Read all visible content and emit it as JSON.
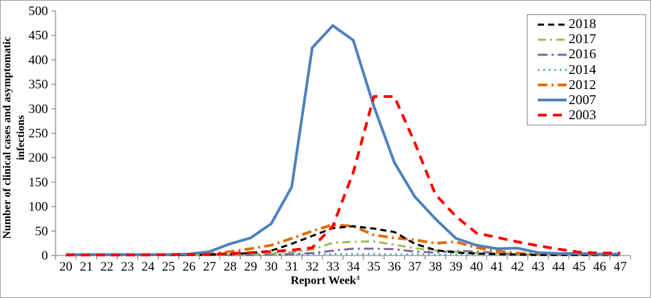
{
  "figure": {
    "y_axis_label_line1": "Number of clinical cases and asymptomatic",
    "y_axis_label_line2": "infections",
    "x_axis_label": "Report Week",
    "x_axis_label_superscript": "±"
  },
  "colors": {
    "axis": "#8c8c8c",
    "legend_border": "#848484",
    "figure_border": "#9a9a9a"
  },
  "chart_data": {
    "type": "line",
    "title": "",
    "xlabel": "Report Week±",
    "ylabel": "Number of clinical cases and asymptomatic infections",
    "x": [
      20,
      21,
      22,
      23,
      24,
      25,
      26,
      27,
      28,
      29,
      30,
      31,
      32,
      33,
      34,
      35,
      36,
      37,
      38,
      39,
      40,
      41,
      42,
      43,
      44,
      45,
      46,
      47
    ],
    "y_ticks": [
      0,
      50,
      100,
      150,
      200,
      250,
      300,
      350,
      400,
      450,
      500
    ],
    "ylim": [
      0,
      500
    ],
    "grid": false,
    "legend_position": "top-right",
    "series": [
      {
        "name": "2018",
        "color": "#000000",
        "dash": "dashed",
        "width": 3,
        "values": [
          1,
          1,
          1,
          1,
          1,
          1,
          1,
          2,
          3,
          5,
          10,
          24,
          40,
          56,
          60,
          55,
          48,
          24,
          11,
          6,
          4,
          3,
          2,
          1,
          1,
          1,
          1,
          1
        ]
      },
      {
        "name": "2017",
        "color": "#9BBB59",
        "dash": "dash-dot",
        "width": 3,
        "values": [
          1,
          1,
          1,
          1,
          1,
          1,
          1,
          1,
          2,
          3,
          4,
          7,
          12,
          26,
          28,
          29,
          22,
          15,
          10,
          8,
          5,
          4,
          2,
          2,
          1,
          1,
          1,
          1
        ]
      },
      {
        "name": "2016",
        "color": "#8064A2",
        "dash": "long-dash-dot",
        "width": 3,
        "values": [
          1,
          1,
          1,
          1,
          1,
          1,
          1,
          1,
          1,
          1,
          2,
          3,
          5,
          10,
          14,
          14,
          13,
          8,
          6,
          10,
          8,
          5,
          3,
          2,
          2,
          1,
          1,
          1
        ]
      },
      {
        "name": "2014",
        "color": "#4BACC6",
        "dash": "dotted",
        "width": 3,
        "values": [
          1,
          1,
          1,
          1,
          1,
          1,
          1,
          1,
          1,
          1,
          2,
          2,
          2,
          3,
          3,
          3,
          2,
          2,
          2,
          2,
          2,
          2,
          2,
          2,
          2,
          2,
          1,
          1
        ]
      },
      {
        "name": "2012",
        "color": "#E36C09",
        "dash": "long-dash-dot",
        "width": 4,
        "values": [
          2,
          2,
          2,
          2,
          2,
          2,
          2,
          3,
          8,
          14,
          21,
          35,
          50,
          63,
          60,
          42,
          36,
          32,
          25,
          28,
          16,
          9,
          5,
          3,
          2,
          2,
          2,
          2
        ]
      },
      {
        "name": "2007",
        "color": "#4F81BD",
        "dash": "solid",
        "width": 4,
        "values": [
          2,
          2,
          2,
          2,
          2,
          2,
          3,
          8,
          24,
          36,
          65,
          140,
          425,
          470,
          440,
          305,
          190,
          120,
          75,
          35,
          21,
          14,
          15,
          6,
          4,
          4,
          3,
          3
        ]
      },
      {
        "name": "2003",
        "color": "#FF0000",
        "dash": "long-dash",
        "width": 4,
        "values": [
          1,
          1,
          1,
          1,
          1,
          2,
          2,
          2,
          4,
          6,
          8,
          11,
          16,
          60,
          170,
          325,
          325,
          230,
          125,
          80,
          46,
          37,
          28,
          20,
          13,
          7,
          5,
          5
        ]
      }
    ]
  }
}
